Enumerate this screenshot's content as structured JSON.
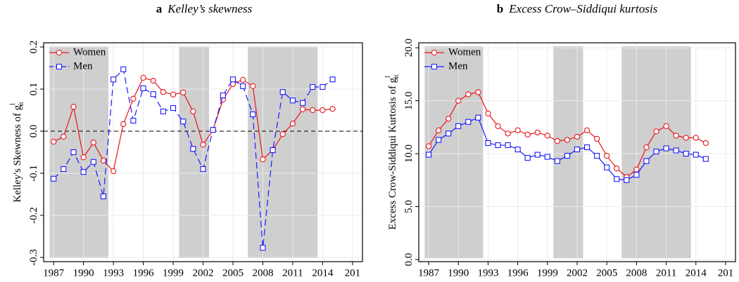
{
  "chart_data": [
    {
      "type": "line",
      "panel": "a",
      "title": "Kelley’s skewness",
      "ylabel": "Kelley's Skewness of g",
      "ylabel_sup": "l",
      "ylabel_sub": "it",
      "x": [
        1987,
        1988,
        1989,
        1990,
        1991,
        1992,
        1993,
        1994,
        1995,
        1996,
        1997,
        1998,
        1999,
        2000,
        2001,
        2002,
        2003,
        2004,
        2005,
        2006,
        2007,
        2008,
        2009,
        2010,
        2011,
        2012,
        2013,
        2014,
        2015
      ],
      "series": [
        {
          "name": "Women",
          "color": "#e8141c",
          "marker": "circle",
          "dash": false,
          "values": [
            -0.025,
            -0.013,
            0.058,
            -0.062,
            -0.027,
            -0.07,
            -0.095,
            0.017,
            0.077,
            0.127,
            0.12,
            0.093,
            0.087,
            0.092,
            0.047,
            -0.032,
            0.003,
            0.075,
            0.112,
            0.122,
            0.107,
            -0.067,
            -0.045,
            -0.007,
            0.018,
            0.052,
            0.05,
            0.05,
            0.053
          ]
        },
        {
          "name": "Men",
          "color": "#1a1aff",
          "marker": "square",
          "dash": true,
          "values": [
            -0.113,
            -0.09,
            -0.05,
            -0.097,
            -0.073,
            -0.155,
            0.123,
            0.147,
            0.025,
            0.102,
            0.088,
            0.047,
            0.055,
            0.023,
            -0.042,
            -0.09,
            0.003,
            0.085,
            0.123,
            0.107,
            0.04,
            -0.277,
            -0.045,
            0.093,
            0.073,
            0.067,
            0.105,
            0.105,
            0.123
          ]
        }
      ],
      "xlim": [
        1986,
        2018
      ],
      "xticks": [
        1987,
        1990,
        1993,
        1996,
        1999,
        2002,
        2005,
        2008,
        2011,
        2014,
        {
          "value": 2017,
          "label": "201"
        }
      ],
      "ylim": [
        -0.31,
        0.21
      ],
      "yticks": [
        -0.3,
        -0.2,
        -0.1,
        {
          "value": 0,
          "label": "0.0"
        },
        0.1,
        0.2
      ],
      "hline": 0,
      "shaded": [
        [
          1986.6,
          1992.5
        ],
        [
          1999.6,
          2002.6
        ],
        [
          2006.5,
          2013.5
        ]
      ],
      "grid": true,
      "legend": "top-left"
    },
    {
      "type": "line",
      "panel": "b",
      "title": "Excess Crow–Siddiqui kurtosis",
      "ylabel": "Excess Crow-Siddiqui Kurtosis of g",
      "ylabel_sup": "l",
      "ylabel_sub": "it",
      "x": [
        1987,
        1988,
        1989,
        1990,
        1991,
        1992,
        1993,
        1994,
        1995,
        1996,
        1997,
        1998,
        1999,
        2000,
        2001,
        2002,
        2003,
        2004,
        2005,
        2006,
        2007,
        2008,
        2009,
        2010,
        2011,
        2012,
        2013,
        2014,
        2015
      ],
      "series": [
        {
          "name": "Women",
          "color": "#e8141c",
          "marker": "circle",
          "dash": false,
          "values": [
            10.7,
            12.2,
            13.3,
            15.0,
            15.6,
            15.8,
            13.8,
            12.6,
            11.9,
            12.2,
            11.8,
            12.0,
            11.7,
            11.2,
            11.3,
            11.6,
            12.2,
            11.4,
            9.8,
            8.6,
            7.8,
            8.5,
            10.6,
            12.1,
            12.6,
            11.7,
            11.5,
            11.5,
            11.0
          ]
        },
        {
          "name": "Men",
          "color": "#1a1aff",
          "marker": "square",
          "dash": false,
          "values": [
            9.9,
            11.3,
            11.9,
            12.6,
            13.0,
            13.4,
            11.0,
            10.8,
            10.8,
            10.4,
            9.6,
            9.9,
            9.7,
            9.3,
            9.8,
            10.4,
            10.6,
            9.8,
            8.7,
            7.6,
            7.5,
            8.0,
            9.3,
            10.2,
            10.5,
            10.3,
            10.0,
            9.9,
            9.5
          ]
        }
      ],
      "xlim": [
        1986,
        2018
      ],
      "xticks": [
        1987,
        1990,
        1993,
        1996,
        1999,
        2002,
        2005,
        2008,
        2011,
        2014,
        {
          "value": 2017,
          "label": "201"
        }
      ],
      "ylim": [
        -0.2,
        20.47
      ],
      "yticks": [
        {
          "value": 0,
          "label": "0.0"
        },
        {
          "value": 5,
          "label": "5.0"
        },
        {
          "value": 10,
          "label": "10.0"
        },
        {
          "value": 15,
          "label": "15.0"
        },
        {
          "value": 20,
          "label": "20.0"
        }
      ],
      "shaded": [
        [
          1986.6,
          1992.5
        ],
        [
          1999.6,
          2002.6
        ],
        [
          2006.5,
          2013.5
        ]
      ],
      "grid": true,
      "legend": "top-left"
    }
  ]
}
